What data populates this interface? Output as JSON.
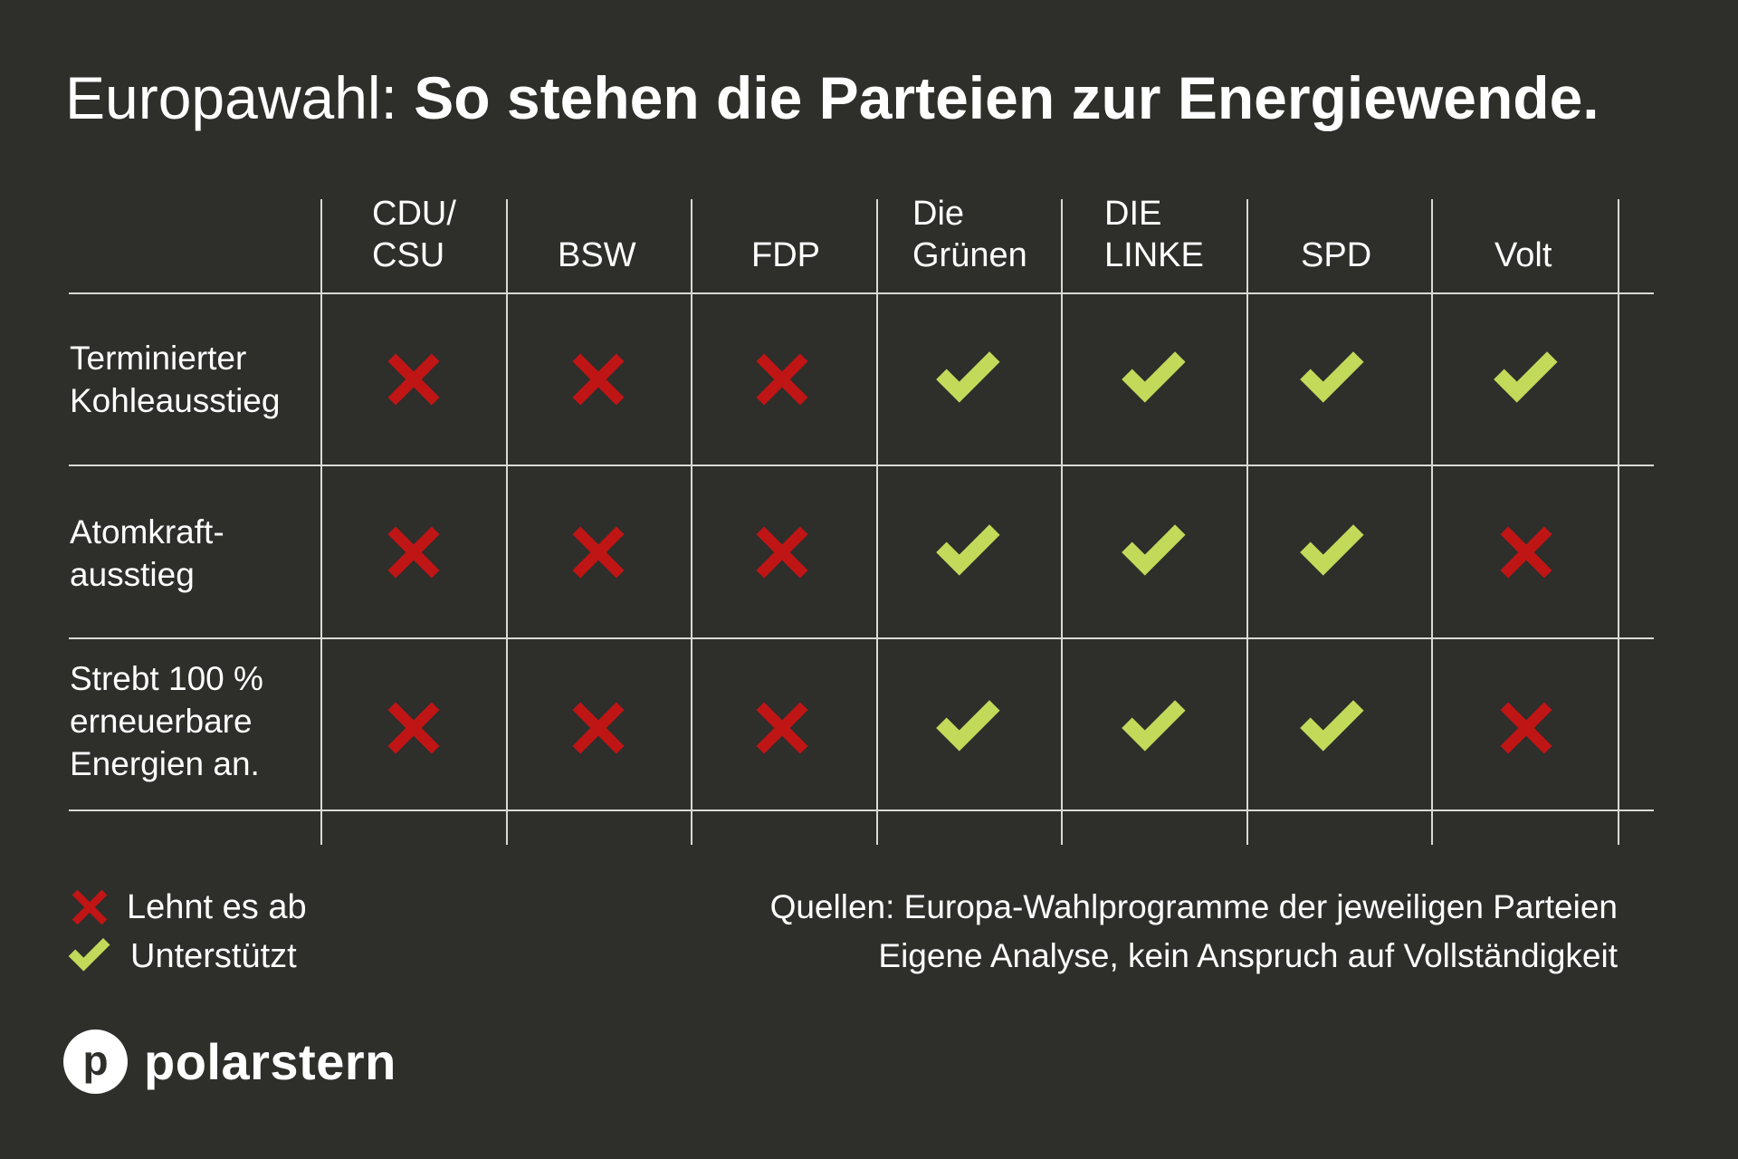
{
  "title": {
    "prefix": "Europawahl:",
    "main": "So stehen die Parteien zur Energiewende."
  },
  "colors": {
    "background": "#2e2e2b",
    "reject": "#c01515",
    "support": "#c2d95a",
    "grid": "#d9d9d6",
    "text": "#ffffff"
  },
  "columns": [
    {
      "line1": "CDU/",
      "line2": "CSU"
    },
    {
      "line1": "",
      "line2": "BSW"
    },
    {
      "line1": "",
      "line2": "FDP"
    },
    {
      "line1": "Die",
      "line2": "Grünen"
    },
    {
      "line1": "DIE",
      "line2": "LINKE"
    },
    {
      "line1": "",
      "line2": "SPD"
    },
    {
      "line1": "",
      "line2": "Volt"
    }
  ],
  "rows": [
    {
      "lines": [
        "Terminierter",
        "Kohleausstieg"
      ]
    },
    {
      "lines": [
        "Atomkraft-",
        "ausstieg"
      ]
    },
    {
      "lines": [
        "Strebt 100 %",
        "erneuerbare",
        "Energien an."
      ]
    }
  ],
  "legend": {
    "reject_label": "Lehnt es ab",
    "support_label": "Unterstützt",
    "reject_icon": "x-mark-icon",
    "support_icon": "check-mark-icon"
  },
  "sources": {
    "line1": "Quellen: Europa-Wahlprogramme der jeweiligen Parteien",
    "line2": "Eigene Analyse, kein Anspruch auf Vollständigkeit"
  },
  "logo": {
    "letter": "p",
    "name": "polarstern"
  },
  "chart_data": {
    "type": "table",
    "title": "Europawahl: So stehen die Parteien zur Energiewende.",
    "columns": [
      "CDU/CSU",
      "BSW",
      "FDP",
      "Die Grünen",
      "DIE LINKE",
      "SPD",
      "Volt"
    ],
    "rows": [
      "Terminierter Kohleausstieg",
      "Atomkraftausstieg",
      "Strebt 100 % erneuerbare Energien an."
    ],
    "values": [
      [
        "Lehnt es ab",
        "Lehnt es ab",
        "Lehnt es ab",
        "Unterstützt",
        "Unterstützt",
        "Unterstützt",
        "Unterstützt"
      ],
      [
        "Lehnt es ab",
        "Lehnt es ab",
        "Lehnt es ab",
        "Unterstützt",
        "Unterstützt",
        "Unterstützt",
        "Lehnt es ab"
      ],
      [
        "Lehnt es ab",
        "Lehnt es ab",
        "Lehnt es ab",
        "Unterstützt",
        "Unterstützt",
        "Unterstützt",
        "Lehnt es ab"
      ]
    ],
    "legend": {
      "x": "Lehnt es ab",
      "check": "Unterstützt"
    },
    "notes": [
      "Quellen: Europa-Wahlprogramme der jeweiligen Parteien",
      "Eigene Analyse, kein Anspruch auf Vollständigkeit"
    ]
  }
}
